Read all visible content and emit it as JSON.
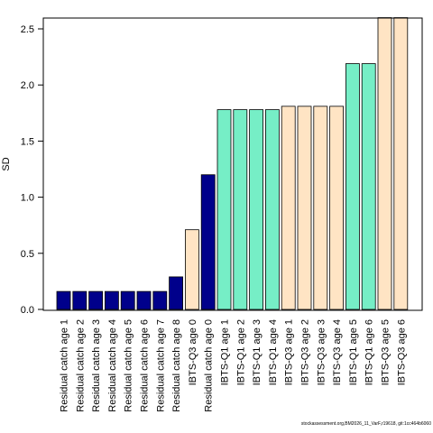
{
  "chart_data": {
    "type": "bar",
    "title": "",
    "xlabel": "",
    "ylabel": "SD",
    "ylim": [
      0,
      2.6
    ],
    "yticks": [
      "0.0",
      "0.5",
      "1.0",
      "1.5",
      "2.0",
      "2.5"
    ],
    "grid": false,
    "categories": [
      "Residual catch age 1",
      "Residual catch age 2",
      "Residual catch age 3",
      "Residual catch age 4",
      "Residual catch age 5",
      "Residual catch age 6",
      "Residual catch age 7",
      "Residual catch age 8",
      "IBTS-Q3 age 0",
      "Residual catch age 0",
      "IBTS-Q1 age 1",
      "IBTS-Q1 age 2",
      "IBTS-Q1 age 3",
      "IBTS-Q1 age 4",
      "IBTS-Q3 age 1",
      "IBTS-Q3 age 2",
      "IBTS-Q3 age 3",
      "IBTS-Q3 age 4",
      "IBTS-Q1 age 5",
      "IBTS-Q1 age 6",
      "IBTS-Q3 age 5",
      "IBTS-Q3 age 6"
    ],
    "values": [
      0.16,
      0.16,
      0.16,
      0.16,
      0.16,
      0.16,
      0.16,
      0.29,
      0.71,
      1.2,
      1.78,
      1.78,
      1.78,
      1.78,
      1.81,
      1.81,
      1.81,
      1.81,
      2.19,
      2.19,
      2.6,
      2.6
    ],
    "bar_colors": [
      "#00008B",
      "#00008B",
      "#00008B",
      "#00008B",
      "#00008B",
      "#00008B",
      "#00008B",
      "#00008B",
      "#FFE4C4",
      "#00008B",
      "#76EEC6",
      "#76EEC6",
      "#76EEC6",
      "#76EEC6",
      "#FFE4C4",
      "#FFE4C4",
      "#FFE4C4",
      "#FFE4C4",
      "#76EEC6",
      "#76EEC6",
      "#FFE4C4",
      "#FFE4C4"
    ]
  },
  "footer": {
    "text": "stockassessment.org,BM2026_11_VarF,r19618, git:1cc464b6060"
  }
}
